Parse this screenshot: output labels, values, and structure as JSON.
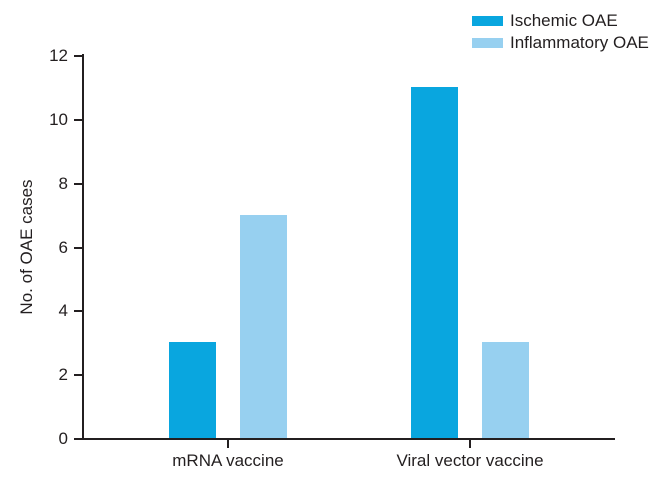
{
  "chart_data": {
    "type": "bar",
    "title": "",
    "categories": [
      "mRNA vaccine",
      "Viral vector vaccine"
    ],
    "series": [
      {
        "name": "Ischemic OAE",
        "color": "#09A6DF",
        "values": [
          3,
          11
        ]
      },
      {
        "name": "Inflammatory OAE",
        "color": "#97D0F0",
        "values": [
          7,
          3
        ]
      }
    ],
    "xlabel": "",
    "ylabel": "No. of OAE cases",
    "ylim": [
      0,
      12
    ],
    "yticks": [
      0,
      2,
      4,
      6,
      8,
      10,
      12
    ],
    "grid": false,
    "legend_position": "top-right",
    "axis_color": "#231F20",
    "text_color": "#231F20",
    "background_color": "#ffffff"
  }
}
